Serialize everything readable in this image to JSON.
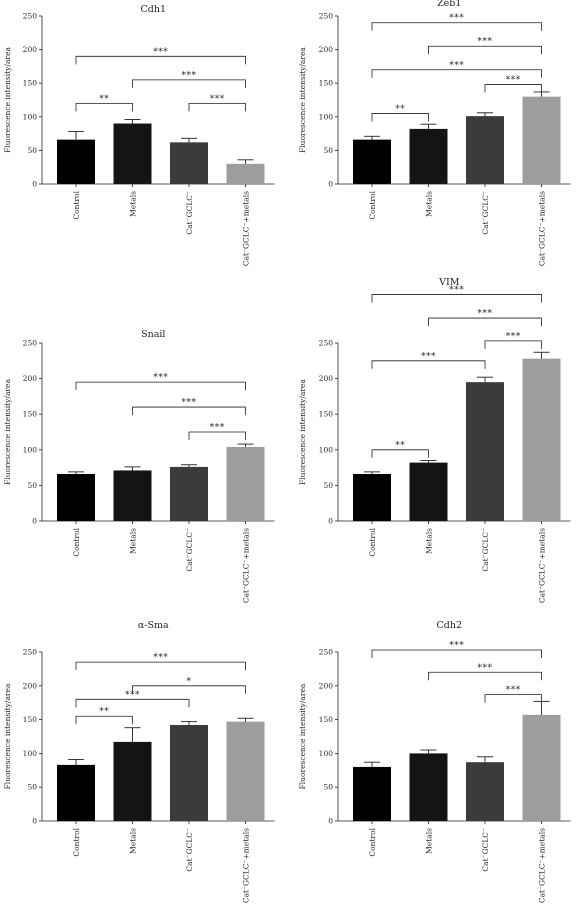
{
  "chart_data": [
    {
      "type": "bar",
      "title": "Cdh1",
      "ylabel": "Fluorescence intensity/area",
      "ylim": [
        0,
        250
      ],
      "yticks": [
        0,
        50,
        100,
        150,
        200,
        250
      ],
      "categories": [
        "Control",
        "Metals",
        "Cat⁻GCLC⁻",
        "Cat⁻GCLC⁻+metals"
      ],
      "values": [
        66,
        90,
        62,
        30
      ],
      "errors": [
        12,
        6,
        6,
        6
      ],
      "colors": [
        "#000000",
        "#141414",
        "#3b3b3b",
        "#9d9d9d"
      ],
      "significance": [
        {
          "from": 0,
          "to": 1,
          "y": 120,
          "label": "**"
        },
        {
          "from": 2,
          "to": 3,
          "y": 120,
          "label": "***"
        },
        {
          "from": 1,
          "to": 3,
          "y": 155,
          "label": "***"
        },
        {
          "from": 0,
          "to": 3,
          "y": 190,
          "label": "***"
        }
      ]
    },
    {
      "type": "bar",
      "title": "Zeb1",
      "ylabel": "Fluorescence intensity/area",
      "ylim": [
        0,
        250
      ],
      "yticks": [
        0,
        50,
        100,
        150,
        200,
        250
      ],
      "categories": [
        "Control",
        "Metals",
        "Cat⁻GCLC⁻",
        "Cat⁻GCLC⁻+metals"
      ],
      "values": [
        66,
        82,
        101,
        130
      ],
      "errors": [
        5,
        7,
        5,
        7
      ],
      "colors": [
        "#000000",
        "#141414",
        "#3b3b3b",
        "#9d9d9d"
      ],
      "significance": [
        {
          "from": 0,
          "to": 1,
          "y": 105,
          "label": "**"
        },
        {
          "from": 2,
          "to": 3,
          "y": 148,
          "label": "***"
        },
        {
          "from": 0,
          "to": 3,
          "y": 170,
          "label": "***"
        },
        {
          "from": 1,
          "to": 3,
          "y": 205,
          "label": "***"
        },
        {
          "from": 0,
          "to": 3,
          "y": 240,
          "label": "***"
        }
      ]
    },
    {
      "type": "bar",
      "title": "Snail",
      "ylabel": "Fluorescence intensity/area",
      "ylim": [
        0,
        250
      ],
      "yticks": [
        0,
        50,
        100,
        150,
        200,
        250
      ],
      "categories": [
        "Control",
        "Metals",
        "Cat⁻GCLC⁻",
        "Cat⁻GCLC⁻+metals"
      ],
      "values": [
        66,
        71,
        76,
        104
      ],
      "errors": [
        3,
        5,
        3,
        4
      ],
      "colors": [
        "#000000",
        "#141414",
        "#3b3b3b",
        "#9d9d9d"
      ],
      "significance": [
        {
          "from": 2,
          "to": 3,
          "y": 125,
          "label": "***"
        },
        {
          "from": 1,
          "to": 3,
          "y": 160,
          "label": "***"
        },
        {
          "from": 0,
          "to": 3,
          "y": 195,
          "label": "***"
        }
      ]
    },
    {
      "type": "bar",
      "title": "VIM",
      "ylabel": "Fluorescence intensity/area",
      "ylim": [
        0,
        250
      ],
      "yticks": [
        0,
        50,
        100,
        150,
        200,
        250
      ],
      "categories": [
        "Control",
        "Metals",
        "Cat⁻GCLC⁻",
        "Cat⁻GCLC⁻+metals"
      ],
      "values": [
        66,
        82,
        195,
        228
      ],
      "errors": [
        3,
        3,
        7,
        9
      ],
      "colors": [
        "#000000",
        "#141414",
        "#3b3b3b",
        "#9d9d9d"
      ],
      "significance": [
        {
          "from": 0,
          "to": 1,
          "y": 100,
          "label": "**"
        },
        {
          "from": 0,
          "to": 2,
          "y": 225,
          "label": "***"
        },
        {
          "from": 2,
          "to": 3,
          "y": 253,
          "label": "***"
        },
        {
          "from": 1,
          "to": 3,
          "y": 285,
          "label": "***"
        },
        {
          "from": 0,
          "to": 3,
          "y": 318,
          "label": "***"
        }
      ]
    },
    {
      "type": "bar",
      "title": "α-Sma",
      "ylabel": "Fluorescence intensity/area",
      "ylim": [
        0,
        250
      ],
      "yticks": [
        0,
        50,
        100,
        150,
        200,
        250
      ],
      "categories": [
        "Control",
        "Metals",
        "Cat⁻GCLC⁻",
        "Cat⁻GCLC⁻+metals"
      ],
      "values": [
        83,
        117,
        142,
        147
      ],
      "errors": [
        8,
        21,
        5,
        5
      ],
      "colors": [
        "#000000",
        "#141414",
        "#3b3b3b",
        "#9d9d9d"
      ],
      "significance": [
        {
          "from": 0,
          "to": 1,
          "y": 155,
          "label": "**"
        },
        {
          "from": 0,
          "to": 2,
          "y": 180,
          "label": "***"
        },
        {
          "from": 1,
          "to": 3,
          "y": 200,
          "label": "*"
        },
        {
          "from": 0,
          "to": 3,
          "y": 235,
          "label": "***"
        }
      ]
    },
    {
      "type": "bar",
      "title": "Cdh2",
      "ylabel": "Fluorescence intensity/area",
      "ylim": [
        0,
        250
      ],
      "yticks": [
        0,
        50,
        100,
        150,
        200,
        250
      ],
      "categories": [
        "Control",
        "Metals",
        "Cat⁻GCLC⁻",
        "Cat⁻GCLC⁻+metals"
      ],
      "values": [
        80,
        100,
        87,
        157
      ],
      "errors": [
        7,
        5,
        8,
        20
      ],
      "colors": [
        "#000000",
        "#141414",
        "#3b3b3b",
        "#9d9d9d"
      ],
      "significance": [
        {
          "from": 2,
          "to": 3,
          "y": 187,
          "label": "***"
        },
        {
          "from": 1,
          "to": 3,
          "y": 220,
          "label": "***"
        },
        {
          "from": 0,
          "to": 3,
          "y": 253,
          "label": "***"
        }
      ]
    }
  ]
}
